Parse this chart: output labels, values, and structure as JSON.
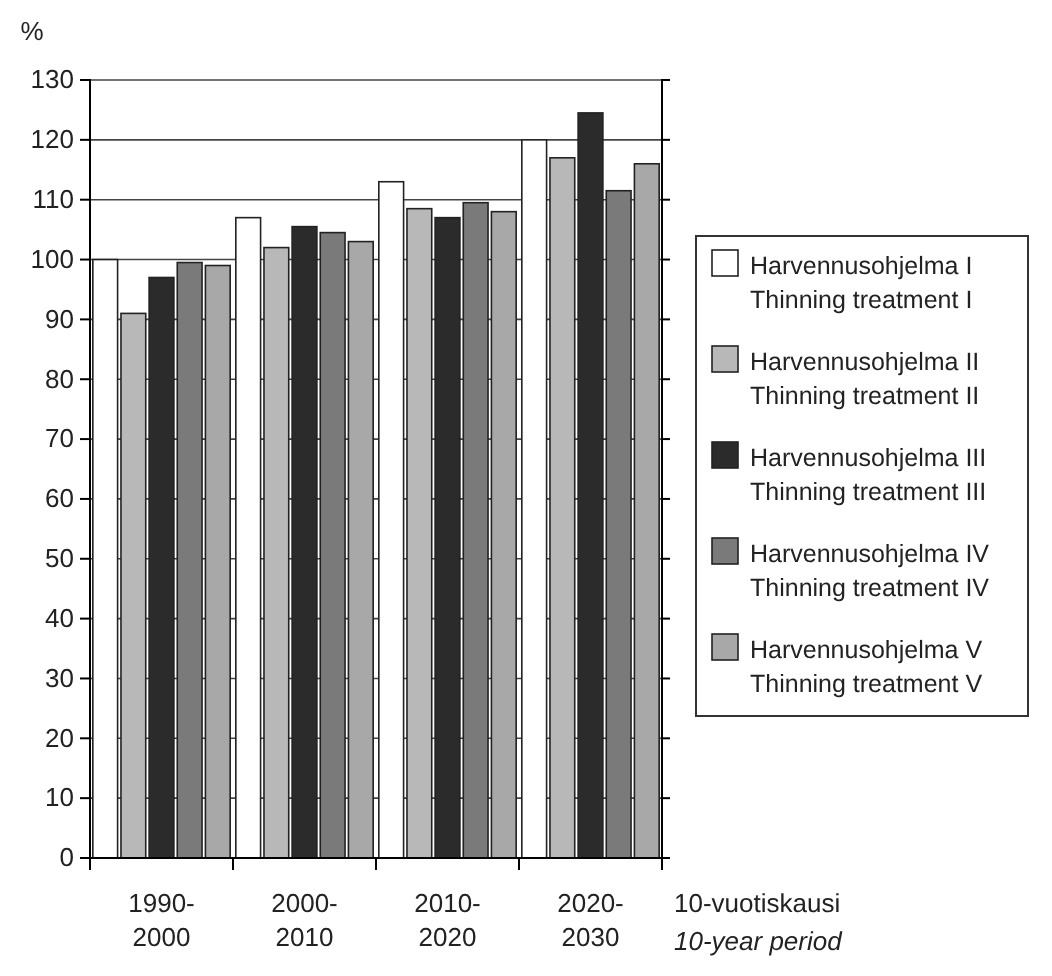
{
  "chart_data": {
    "type": "bar",
    "ylabel": "%",
    "xlabel": "10-vuotiskausi\n10-year period",
    "categories": [
      "1990-\n2000",
      "2000-\n2010",
      "2010-\n2020",
      "2020-\n2030"
    ],
    "series": [
      {
        "name": "Harvennusohjelma I\nThinning treatment I",
        "color": "#ffffff",
        "values": [
          100,
          107,
          113,
          120
        ]
      },
      {
        "name": "Harvennusohjelma II\nThinning treatment II",
        "color": "#b8b8b8",
        "values": [
          91,
          102,
          108.5,
          117
        ]
      },
      {
        "name": "Harvennusohjelma III\nThinning treatment III",
        "color": "#2b2b2b",
        "values": [
          97,
          105.5,
          107,
          124.5
        ]
      },
      {
        "name": "Harvennusohjelma IV\nThinning treatment IV",
        "color": "#7a7a7a",
        "values": [
          99.5,
          104.5,
          109.5,
          111.5
        ]
      },
      {
        "name": "Harvennusohjelma V\nThinning treatment V",
        "color": "#a8a8a8",
        "values": [
          99,
          103,
          108,
          116
        ]
      }
    ],
    "ylim": [
      0,
      130
    ],
    "yticks": [
      0,
      10,
      20,
      30,
      40,
      50,
      60,
      70,
      80,
      90,
      100,
      110,
      120,
      130
    ],
    "grid": "y",
    "legend": "right"
  }
}
